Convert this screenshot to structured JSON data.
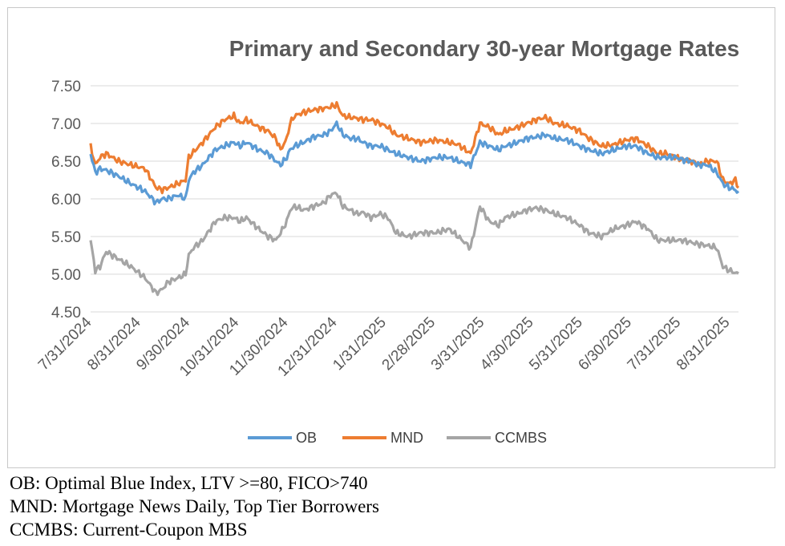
{
  "colors": {
    "OB": "#5b9bd5",
    "MND": "#ed7d31",
    "CCMBS": "#a5a5a5",
    "grid": "#d9d9d9",
    "text": "#595959"
  },
  "chart_data": {
    "type": "line",
    "title": "Primary and  Secondary 30-year Mortgage Rates",
    "xlabel": "",
    "ylabel": "",
    "ylim": [
      4.5,
      7.5
    ],
    "y_ticks": [
      "7.50",
      "7.00",
      "6.50",
      "6.00",
      "5.50",
      "5.00",
      "4.50"
    ],
    "x_tick_labels": [
      "7/31/2024",
      "8/31/2024",
      "9/30/2024",
      "10/31/2024",
      "11/30/2024",
      "12/31/2024",
      "1/31/2025",
      "2/28/2025",
      "3/31/2025",
      "4/30/2025",
      "5/31/2025",
      "6/30/2025",
      "7/31/2025",
      "8/31/2025"
    ],
    "x_range_days": [
      0,
      416
    ],
    "grid": "horizontal",
    "legend_position": "bottom",
    "series": [
      {
        "name": "OB",
        "x": [
          0,
          3,
          6,
          10,
          18,
          26,
          35,
          42,
          46,
          50,
          56,
          61,
          63,
          66,
          72,
          80,
          86,
          92,
          96,
          100,
          108,
          114,
          119,
          122,
          126,
          128,
          131,
          137,
          143,
          150,
          154,
          158,
          162,
          167,
          171,
          175,
          180,
          186,
          191,
          196,
          204,
          212,
          222,
          230,
          236,
          244,
          250,
          256,
          262,
          266,
          270,
          274,
          280,
          286,
          292,
          298,
          306,
          314,
          320,
          328,
          336,
          344,
          350,
          358,
          364,
          370,
          376,
          380,
          386,
          390,
          396,
          402,
          406,
          410,
          414,
          416
        ],
        "values": [
          6.6,
          6.35,
          6.4,
          6.38,
          6.3,
          6.2,
          6.1,
          5.95,
          6.0,
          6.0,
          6.05,
          6.0,
          6.25,
          6.35,
          6.45,
          6.65,
          6.7,
          6.75,
          6.7,
          6.75,
          6.65,
          6.6,
          6.5,
          6.45,
          6.55,
          6.65,
          6.7,
          6.75,
          6.82,
          6.85,
          6.9,
          7.0,
          6.85,
          6.8,
          6.8,
          6.75,
          6.7,
          6.7,
          6.65,
          6.6,
          6.55,
          6.5,
          6.55,
          6.55,
          6.5,
          6.45,
          6.75,
          6.7,
          6.65,
          6.7,
          6.72,
          6.75,
          6.8,
          6.82,
          6.85,
          6.8,
          6.78,
          6.7,
          6.65,
          6.6,
          6.65,
          6.7,
          6.7,
          6.6,
          6.55,
          6.55,
          6.55,
          6.52,
          6.5,
          6.45,
          6.45,
          6.35,
          6.2,
          6.15,
          6.12,
          6.08
        ]
      },
      {
        "name": "MND",
        "x": [
          0,
          3,
          6,
          10,
          18,
          26,
          35,
          42,
          46,
          50,
          56,
          61,
          63,
          66,
          72,
          80,
          86,
          92,
          96,
          100,
          108,
          114,
          119,
          122,
          126,
          128,
          131,
          137,
          143,
          150,
          154,
          158,
          162,
          167,
          171,
          175,
          180,
          186,
          191,
          196,
          204,
          212,
          222,
          230,
          236,
          244,
          250,
          256,
          262,
          266,
          270,
          274,
          280,
          286,
          292,
          298,
          306,
          314,
          320,
          328,
          336,
          344,
          350,
          358,
          364,
          370,
          376,
          380,
          386,
          390,
          396,
          402,
          406,
          410,
          414,
          416
        ],
        "values": [
          6.7,
          6.45,
          6.55,
          6.6,
          6.5,
          6.45,
          6.4,
          6.15,
          6.12,
          6.15,
          6.2,
          6.25,
          6.55,
          6.62,
          6.75,
          6.95,
          7.05,
          7.1,
          7.0,
          7.05,
          6.95,
          6.9,
          6.8,
          6.65,
          6.8,
          7.0,
          7.1,
          7.15,
          7.18,
          7.2,
          7.22,
          7.25,
          7.1,
          7.08,
          7.07,
          7.05,
          7.05,
          7.0,
          6.95,
          6.85,
          6.8,
          6.75,
          6.78,
          6.75,
          6.72,
          6.6,
          7.0,
          6.95,
          6.85,
          6.9,
          6.92,
          6.95,
          7.0,
          7.05,
          7.08,
          7.0,
          6.97,
          6.9,
          6.8,
          6.7,
          6.72,
          6.78,
          6.8,
          6.7,
          6.6,
          6.6,
          6.55,
          6.52,
          6.5,
          6.45,
          6.5,
          6.5,
          6.25,
          6.2,
          6.25,
          6.15
        ]
      },
      {
        "name": "CCMBS",
        "x": [
          0,
          3,
          6,
          10,
          18,
          26,
          35,
          42,
          46,
          50,
          56,
          61,
          63,
          66,
          72,
          80,
          86,
          92,
          96,
          100,
          108,
          114,
          119,
          122,
          126,
          128,
          131,
          137,
          143,
          150,
          154,
          158,
          162,
          167,
          171,
          175,
          180,
          186,
          191,
          196,
          204,
          212,
          222,
          230,
          236,
          244,
          250,
          256,
          262,
          266,
          270,
          274,
          280,
          286,
          292,
          298,
          306,
          314,
          320,
          328,
          336,
          344,
          350,
          358,
          364,
          370,
          376,
          380,
          386,
          390,
          396,
          402,
          406,
          410,
          414,
          416
        ],
        "values": [
          5.45,
          5.05,
          5.1,
          5.3,
          5.2,
          5.1,
          4.95,
          4.75,
          4.8,
          4.9,
          4.95,
          5.0,
          5.25,
          5.35,
          5.45,
          5.7,
          5.75,
          5.75,
          5.7,
          5.75,
          5.6,
          5.5,
          5.45,
          5.55,
          5.7,
          5.85,
          5.9,
          5.85,
          5.9,
          5.95,
          6.05,
          6.08,
          5.9,
          5.85,
          5.8,
          5.82,
          5.75,
          5.8,
          5.75,
          5.55,
          5.5,
          5.55,
          5.55,
          5.6,
          5.5,
          5.35,
          5.9,
          5.7,
          5.65,
          5.75,
          5.78,
          5.8,
          5.85,
          5.88,
          5.85,
          5.8,
          5.75,
          5.65,
          5.55,
          5.5,
          5.6,
          5.65,
          5.7,
          5.6,
          5.45,
          5.45,
          5.45,
          5.45,
          5.42,
          5.4,
          5.38,
          5.35,
          5.1,
          5.05,
          5.02,
          5.0
        ]
      }
    ]
  },
  "notes": [
    "OB: Optimal Blue Index, LTV >=80, FICO>740",
    "MND: Mortgage News Daily, Top Tier Borrowers",
    "CCMBS:  Current-Coupon MBS"
  ]
}
